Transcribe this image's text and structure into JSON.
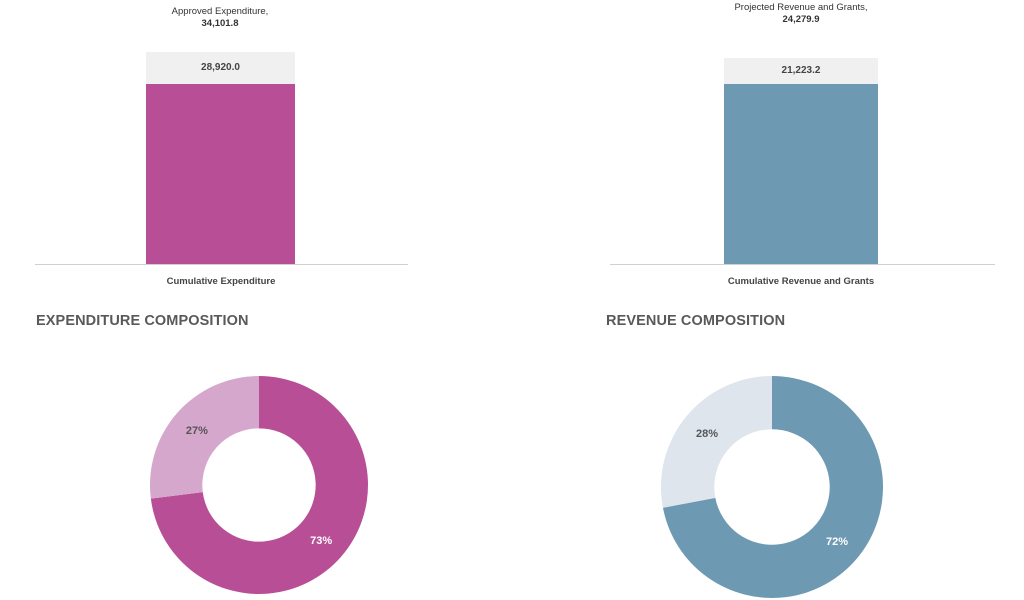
{
  "chart_data": [
    {
      "type": "bar",
      "id": "expenditure-bar",
      "categories": [
        "Cumulative Expenditure"
      ],
      "values": [
        28920.0
      ],
      "value_label": "28,920.0",
      "total_caption": "Approved Expenditure,",
      "total_value": 34101.8,
      "total_value_label": "34,101.8",
      "color": "#b84f96",
      "track_color": "#f0f0f0"
    },
    {
      "type": "bar",
      "id": "revenue-bar",
      "categories": [
        "Cumulative Revenue and Grants"
      ],
      "values": [
        21223.2
      ],
      "value_label": "21,223.2",
      "total_caption": "Projected Revenue and Grants,",
      "total_value": 24279.9,
      "total_value_label": "24,279.9",
      "color": "#6e99b3",
      "track_color": "#f0f0f0"
    },
    {
      "type": "pie",
      "id": "expenditure-composition",
      "title": "EXPENDITURE COMPOSITION",
      "donut": true,
      "slices": [
        {
          "value": 73,
          "label": "73%",
          "color": "#b84f96",
          "label_color": "#ffffff"
        },
        {
          "value": 27,
          "label": "27%",
          "color": "#d6a7cc",
          "label_color": "#555555"
        }
      ]
    },
    {
      "type": "pie",
      "id": "revenue-composition",
      "title": "REVENUE COMPOSITION",
      "donut": true,
      "slices": [
        {
          "value": 72,
          "label": "72%",
          "color": "#6e99b3",
          "label_color": "#ffffff"
        },
        {
          "value": 28,
          "label": "28%",
          "color": "#dee5ed",
          "label_color": "#555555"
        }
      ]
    }
  ]
}
